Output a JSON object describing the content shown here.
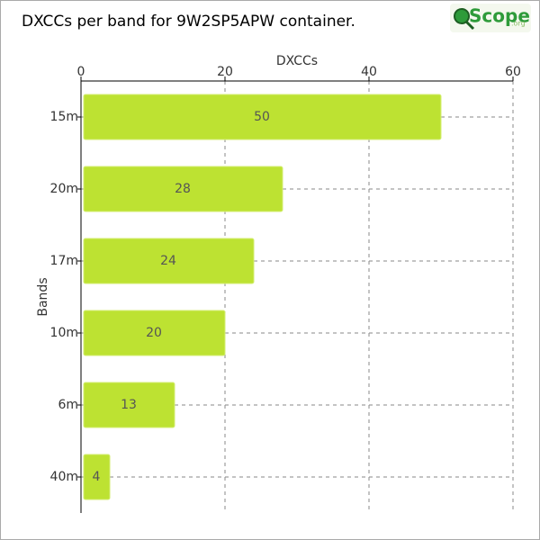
{
  "chart_data": {
    "type": "bar",
    "orientation": "horizontal",
    "title": "DXCCs per band for 9W2SP5APW container.",
    "x_label": "DXCCs",
    "y_label": "Bands",
    "categories": [
      "15m",
      "20m",
      "17m",
      "10m",
      "6m",
      "40m"
    ],
    "values": [
      50,
      28,
      24,
      20,
      13,
      4
    ],
    "color": "#bde232",
    "xlim": [
      0,
      60
    ],
    "xticks": [
      0,
      20,
      40,
      60
    ],
    "grid": true
  },
  "logo": {
    "name": "Scope",
    "suffix": ".org"
  }
}
